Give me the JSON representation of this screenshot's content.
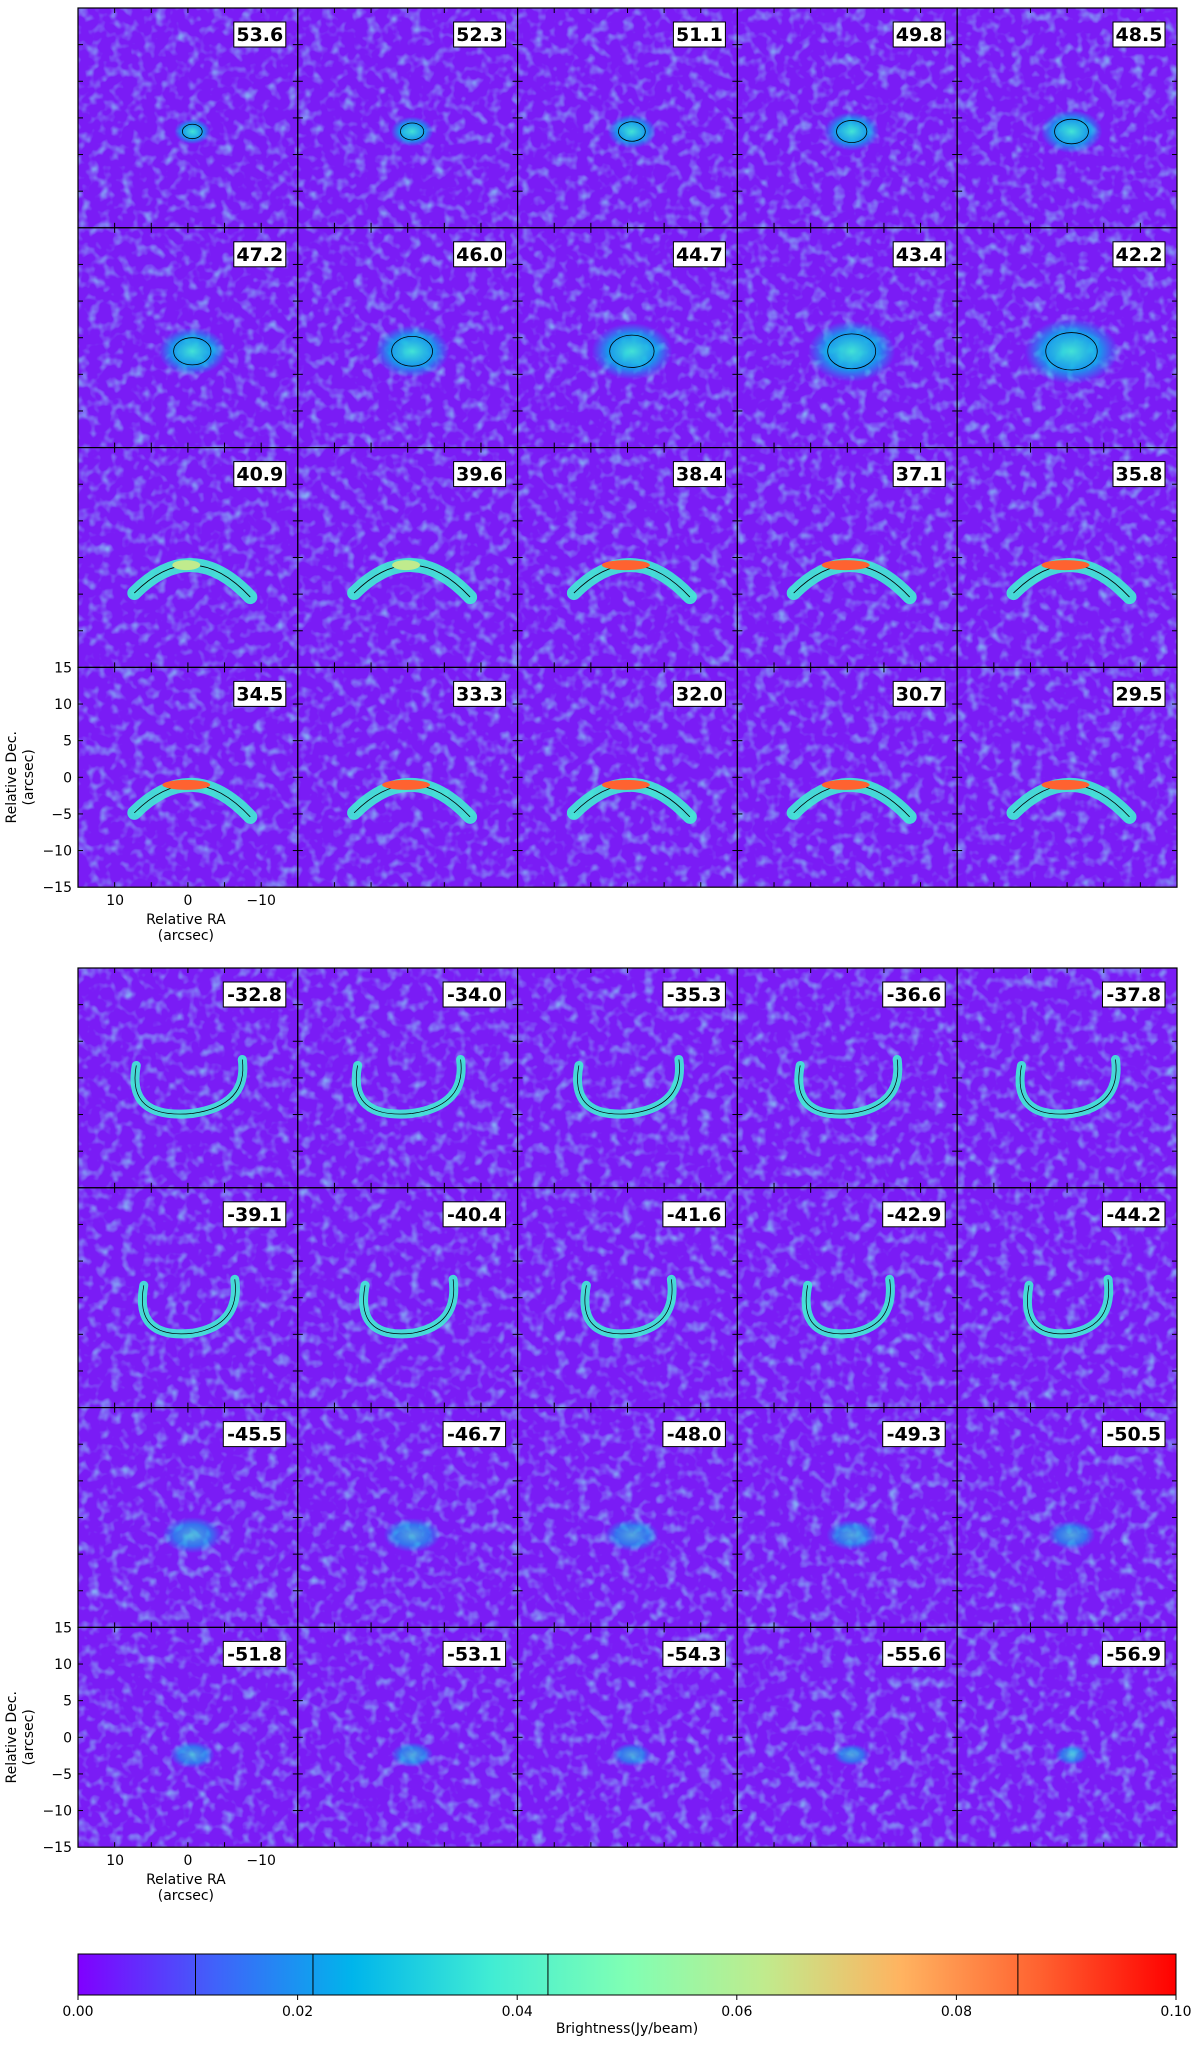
{
  "chart_data": {
    "type": "heatmap",
    "description_panels": "channel map mosaic, each panel labelled with its velocity",
    "groups": [
      {
        "velocities": [
          "53.6",
          "52.3",
          "51.1",
          "49.8",
          "48.5",
          "47.2",
          "46.0",
          "44.7",
          "43.4",
          "42.2",
          "40.9",
          "39.6",
          "38.4",
          "37.1",
          "35.8",
          "34.5",
          "33.3",
          "32.0",
          "30.7",
          "29.5"
        ],
        "rows": 4,
        "cols": 5
      },
      {
        "velocities": [
          "-32.8",
          "-34.0",
          "-35.3",
          "-36.6",
          "-37.8",
          "-39.1",
          "-40.4",
          "-41.6",
          "-42.9",
          "-44.2",
          "-45.5",
          "-46.7",
          "-48.0",
          "-49.3",
          "-50.5",
          "-51.8",
          "-53.1",
          "-54.3",
          "-55.6",
          "-56.9"
        ],
        "rows": 4,
        "cols": 5
      }
    ],
    "xlabel": "Relative RA\n(arcsec)",
    "ylabel": "Relative Dec.\n(arcsec)",
    "xlim": [
      15,
      -15
    ],
    "ylim": [
      -15,
      15
    ],
    "x_ticks": [
      "10",
      "0",
      "−10"
    ],
    "y_ticks": [
      "15",
      "10",
      "5",
      "0",
      "−5",
      "−10",
      "−15"
    ],
    "colorbar": {
      "label": "Brightness(Jy/beam)",
      "range": [
        0,
        0.1
      ],
      "ticks": [
        "0.00",
        "0.02",
        "0.04",
        "0.06",
        "0.08",
        "0.10"
      ],
      "contour_levels": [
        0.0107,
        0.0214,
        0.0428,
        0.0856
      ],
      "colormap": "rainbow"
    }
  }
}
